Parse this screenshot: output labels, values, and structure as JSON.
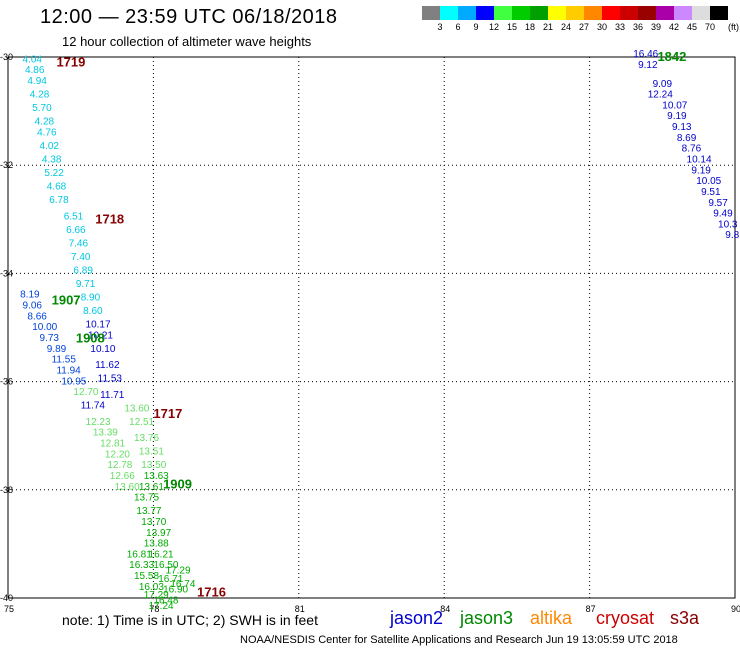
{
  "title": "12:00 — 23:59 UTC 06/18/2018",
  "subtitle": "12 hour collection of altimeter wave heights",
  "colorbar": {
    "unit": "(ft)",
    "colors": [
      "#808080",
      "#00ffff",
      "#00aaff",
      "#0000ff",
      "#40ff40",
      "#00cc00",
      "#00a000",
      "#ffff00",
      "#ffcc00",
      "#ff8800",
      "#ff0000",
      "#cc0000",
      "#990000",
      "#aa00aa",
      "#cc88ff",
      "#dddddd",
      "#000000"
    ],
    "labels": [
      "3",
      "6",
      "9",
      "12",
      "15",
      "18",
      "21",
      "24",
      "27",
      "30",
      "33",
      "36",
      "39",
      "42",
      "45",
      "70"
    ]
  },
  "note": "note:  1) Time is in UTC;  2) SWH is in feet",
  "legend": [
    {
      "name": "jason2",
      "color": "#0000cc"
    },
    {
      "name": "jason3",
      "color": "#008800"
    },
    {
      "name": "altika",
      "color": "#ff8800"
    },
    {
      "name": "cryosat",
      "color": "#cc0000"
    },
    {
      "name": "s3a",
      "color": "#880000"
    }
  ],
  "credit": "NOAA/NESDIS Center for Satellite Applications and Research     Jun 19 13:05:59 UTC 2018",
  "chart_data": {
    "type": "scatter",
    "xlabel": "",
    "ylabel": "",
    "xlim": [
      75,
      90
    ],
    "ylim": [
      -40,
      -30
    ],
    "xticks": [
      "75",
      "78",
      "81",
      "84",
      "87",
      "90"
    ],
    "yticks": [
      "-30",
      "-32",
      "-34",
      "-36",
      "-38",
      "-40"
    ],
    "grid": true,
    "pass_labels": [
      {
        "text": "1719",
        "x": 76.0,
        "y": -30.1,
        "color": "#880000"
      },
      {
        "text": "1718",
        "x": 76.8,
        "y": -33.0,
        "color": "#880000"
      },
      {
        "text": "1907",
        "x": 75.9,
        "y": -34.5,
        "color": "#008800"
      },
      {
        "text": "1908",
        "x": 76.4,
        "y": -35.2,
        "color": "#008800"
      },
      {
        "text": "1717",
        "x": 78.0,
        "y": -36.6,
        "color": "#880000"
      },
      {
        "text": "1909",
        "x": 78.2,
        "y": -37.9,
        "color": "#008800"
      },
      {
        "text": "1716",
        "x": 78.9,
        "y": -39.9,
        "color": "#880000"
      },
      {
        "text": "1842",
        "x": 88.4,
        "y": -30.0,
        "color": "#008800"
      }
    ],
    "series": [
      {
        "name": "1719",
        "color": "#00c8e0",
        "points": [
          {
            "x": 75.3,
            "y": -30.1,
            "label": "4.04"
          },
          {
            "x": 75.35,
            "y": -30.3,
            "label": "4.86"
          },
          {
            "x": 75.4,
            "y": -30.5,
            "label": "4.94"
          },
          {
            "x": 75.45,
            "y": -30.75,
            "label": "4.28"
          },
          {
            "x": 75.5,
            "y": -31.0,
            "label": "5.70"
          },
          {
            "x": 75.55,
            "y": -31.25,
            "label": "4.28"
          },
          {
            "x": 75.6,
            "y": -31.45,
            "label": "4.76"
          },
          {
            "x": 75.65,
            "y": -31.7,
            "label": "4.02"
          },
          {
            "x": 75.7,
            "y": -31.95,
            "label": "4.38"
          },
          {
            "x": 75.75,
            "y": -32.2,
            "label": "5.22"
          },
          {
            "x": 75.8,
            "y": -32.45,
            "label": "4.68"
          },
          {
            "x": 75.85,
            "y": -32.7,
            "label": "6.78"
          }
        ]
      },
      {
        "name": "1718",
        "color": "#00c8e0",
        "points": [
          {
            "x": 76.15,
            "y": -33.0,
            "label": "6.51"
          },
          {
            "x": 76.2,
            "y": -33.25,
            "label": "6.66"
          },
          {
            "x": 76.25,
            "y": -33.5,
            "label": "7.46"
          },
          {
            "x": 76.3,
            "y": -33.75,
            "label": "7.40"
          },
          {
            "x": 76.35,
            "y": -34.0,
            "label": "6.89"
          },
          {
            "x": 76.4,
            "y": -34.25,
            "label": "9.71"
          },
          {
            "x": 76.5,
            "y": -34.5,
            "label": "8.90"
          },
          {
            "x": 76.55,
            "y": -34.75,
            "label": "8.60"
          }
        ]
      },
      {
        "name": "1907",
        "color": "#0044dd",
        "points": [
          {
            "x": 75.25,
            "y": -34.45,
            "label": "8.19"
          },
          {
            "x": 75.3,
            "y": -34.65,
            "label": "9.06"
          },
          {
            "x": 75.4,
            "y": -34.85,
            "label": "8.66"
          },
          {
            "x": 75.5,
            "y": -35.05,
            "label": "10.00"
          },
          {
            "x": 75.65,
            "y": -35.25,
            "label": "9.73"
          },
          {
            "x": 75.8,
            "y": -35.45,
            "label": "9.89"
          },
          {
            "x": 75.9,
            "y": -35.65,
            "label": "11.55"
          },
          {
            "x": 76.0,
            "y": -35.85,
            "label": "11.94"
          },
          {
            "x": 76.1,
            "y": -36.05,
            "label": "10.95"
          }
        ]
      },
      {
        "name": "1908",
        "color": "#0000cc",
        "points": [
          {
            "x": 76.6,
            "y": -35.0,
            "label": "10.17"
          },
          {
            "x": 76.65,
            "y": -35.2,
            "label": "10.21"
          },
          {
            "x": 76.7,
            "y": -35.45,
            "label": "10.10"
          },
          {
            "x": 76.8,
            "y": -35.75,
            "label": "11.62"
          },
          {
            "x": 76.85,
            "y": -36.0,
            "label": "11.53"
          },
          {
            "x": 76.9,
            "y": -36.3,
            "label": "11.71"
          },
          {
            "x": 76.5,
            "y": -36.5,
            "label": "11.74"
          }
        ]
      },
      {
        "name": "1717",
        "color": "#66dd66",
        "points": [
          {
            "x": 76.35,
            "y": -36.25,
            "label": "12.70"
          },
          {
            "x": 76.6,
            "y": -36.8,
            "label": "12.23"
          },
          {
            "x": 76.75,
            "y": -37.0,
            "label": "13.39"
          },
          {
            "x": 76.9,
            "y": -37.2,
            "label": "12.81"
          },
          {
            "x": 77.0,
            "y": -37.4,
            "label": "12.20"
          },
          {
            "x": 77.05,
            "y": -37.6,
            "label": "12.78"
          },
          {
            "x": 77.1,
            "y": -37.8,
            "label": "12.66"
          },
          {
            "x": 77.2,
            "y": -38.0,
            "label": "13.60"
          },
          {
            "x": 77.4,
            "y": -36.55,
            "label": "13.60"
          },
          {
            "x": 77.5,
            "y": -36.8,
            "label": "12.51"
          },
          {
            "x": 77.6,
            "y": -37.1,
            "label": "13.76"
          },
          {
            "x": 77.7,
            "y": -37.35,
            "label": "13.51"
          },
          {
            "x": 77.75,
            "y": -37.6,
            "label": "13.50"
          }
        ]
      },
      {
        "name": "1909",
        "color": "#00aa00",
        "points": [
          {
            "x": 77.8,
            "y": -37.8,
            "label": "13.63"
          },
          {
            "x": 77.7,
            "y": -38.0,
            "label": "13.61"
          },
          {
            "x": 77.6,
            "y": -38.2,
            "label": "13.75"
          },
          {
            "x": 77.65,
            "y": -38.45,
            "label": "13.77"
          },
          {
            "x": 77.75,
            "y": -38.65,
            "label": "13.70"
          },
          {
            "x": 77.85,
            "y": -38.85,
            "label": "13.97"
          },
          {
            "x": 77.8,
            "y": -39.05,
            "label": "13.88"
          },
          {
            "x": 77.9,
            "y": -39.25,
            "label": "16.21"
          },
          {
            "x": 78.0,
            "y": -39.45,
            "label": "16.50"
          },
          {
            "x": 78.1,
            "y": -39.7,
            "label": "16.71"
          },
          {
            "x": 78.2,
            "y": -39.9,
            "label": "16.90"
          }
        ]
      },
      {
        "name": "1716",
        "color": "#00aa00",
        "points": [
          {
            "x": 77.45,
            "y": -39.25,
            "label": "16.81"
          },
          {
            "x": 77.5,
            "y": -39.45,
            "label": "16.33"
          },
          {
            "x": 77.6,
            "y": -39.65,
            "label": "15.58"
          },
          {
            "x": 77.7,
            "y": -39.85,
            "label": "16.03"
          },
          {
            "x": 77.8,
            "y": -40.0,
            "label": "17.29"
          },
          {
            "x": 78.25,
            "y": -39.55,
            "label": "17.29"
          },
          {
            "x": 78.35,
            "y": -39.8,
            "label": "16.74"
          },
          {
            "x": 78.0,
            "y": -40.1,
            "label": "16.48"
          },
          {
            "x": 77.9,
            "y": -40.2,
            "label": "17.24"
          }
        ]
      },
      {
        "name": "1842",
        "color": "#0000cc",
        "points": [
          {
            "x": 87.9,
            "y": -30.0,
            "label": "16.46"
          },
          {
            "x": 88.0,
            "y": -30.2,
            "label": "9.12"
          },
          {
            "x": 88.3,
            "y": -30.55,
            "label": "9.09"
          },
          {
            "x": 88.2,
            "y": -30.75,
            "label": "12.24"
          },
          {
            "x": 88.5,
            "y": -30.95,
            "label": "10.07"
          },
          {
            "x": 88.6,
            "y": -31.15,
            "label": "9.19"
          },
          {
            "x": 88.7,
            "y": -31.35,
            "label": "9.13"
          },
          {
            "x": 88.8,
            "y": -31.55,
            "label": "8.69"
          },
          {
            "x": 88.9,
            "y": -31.75,
            "label": "8.76"
          },
          {
            "x": 89.0,
            "y": -31.95,
            "label": "10.14"
          },
          {
            "x": 89.1,
            "y": -32.15,
            "label": "9.19"
          },
          {
            "x": 89.2,
            "y": -32.35,
            "label": "10.05"
          },
          {
            "x": 89.3,
            "y": -32.55,
            "label": "9.51"
          },
          {
            "x": 89.45,
            "y": -32.75,
            "label": "9.57"
          },
          {
            "x": 89.55,
            "y": -32.95,
            "label": "9.49"
          },
          {
            "x": 89.65,
            "y": -33.15,
            "label": "10.3"
          },
          {
            "x": 89.8,
            "y": -33.35,
            "label": "9.8"
          }
        ]
      }
    ]
  }
}
